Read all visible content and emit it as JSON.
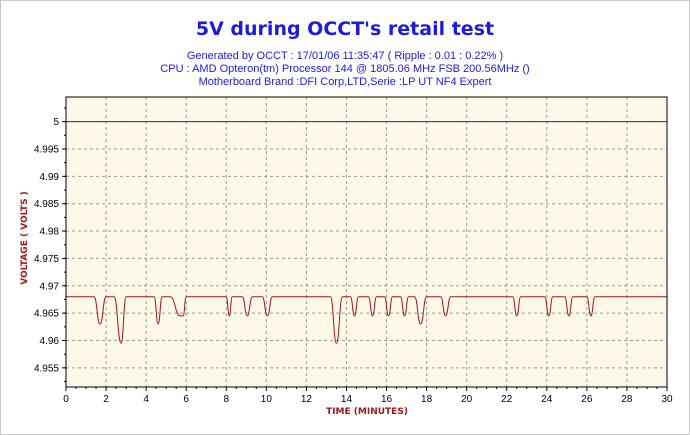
{
  "chart_data": {
    "type": "line",
    "title": "5V during OCCT's retail test",
    "subtitle_lines": [
      "Generated by OCCT : 17/01/06 11:35:47 ( Ripple : 0.01 : 0.22% )",
      "CPU : AMD Opteron(tm) Processor 144    @ 1805.06 MHz FSB 200.56MHz ()",
      "Motherboard Brand :DFI Corp,LTD,Serie :LP UT NF4 Expert"
    ],
    "xlabel": "TIME (MINUTES)",
    "ylabel": "VOLTAGE ( VOLTS )",
    "xlim": [
      0,
      30
    ],
    "ylim": [
      4.9515,
      5.0045
    ],
    "x_ticks": [
      0,
      2,
      4,
      6,
      8,
      10,
      12,
      14,
      16,
      18,
      20,
      22,
      24,
      26,
      28,
      30
    ],
    "y_ticks": [
      "4.955",
      "4.96",
      "4.965",
      "4.97",
      "4.975",
      "4.98",
      "4.985",
      "4.99",
      "4.995",
      "5"
    ],
    "grid": true,
    "colors": {
      "plot_bg": "#fdf8e8",
      "grid": "#9a9a9a",
      "ref_line": "#2020d0",
      "series": "#a01818",
      "title": "#1c1ce0",
      "axis_title": "#a01818"
    },
    "series": [
      {
        "line": "reference",
        "x": [
          0,
          30
        ],
        "y": [
          5.0,
          5.0
        ]
      },
      {
        "line": "measured",
        "baseline": 4.968,
        "x": [
          0,
          1.4,
          1.7,
          2.0,
          2.2,
          2.4,
          2.75,
          3.0,
          3.2,
          4.4,
          4.6,
          4.8,
          5.0,
          5.2,
          5.7,
          5.85,
          6.0,
          8.0,
          8.15,
          8.3,
          8.8,
          9.05,
          9.3,
          9.8,
          10.05,
          10.3,
          13.2,
          13.5,
          13.8,
          14.2,
          14.4,
          14.6,
          15.1,
          15.3,
          15.5,
          15.9,
          16.1,
          16.3,
          16.7,
          16.9,
          17.1,
          17.4,
          17.7,
          18.0,
          18.7,
          18.95,
          19.2,
          22.3,
          22.5,
          22.7,
          23.9,
          24.1,
          24.3,
          24.9,
          25.1,
          25.3,
          26.0,
          26.2,
          26.4,
          30
        ],
        "y": [
          4.968,
          4.968,
          4.963,
          4.968,
          4.968,
          4.968,
          4.9595,
          4.968,
          4.968,
          4.968,
          4.963,
          4.968,
          4.968,
          4.968,
          4.9645,
          4.9645,
          4.968,
          4.968,
          4.9645,
          4.968,
          4.968,
          4.9645,
          4.968,
          4.968,
          4.9645,
          4.968,
          4.968,
          4.9595,
          4.968,
          4.968,
          4.9645,
          4.968,
          4.968,
          4.9645,
          4.968,
          4.968,
          4.9645,
          4.968,
          4.968,
          4.9645,
          4.968,
          4.968,
          4.963,
          4.968,
          4.968,
          4.9645,
          4.968,
          4.968,
          4.9645,
          4.968,
          4.968,
          4.9645,
          4.968,
          4.968,
          4.9645,
          4.968,
          4.968,
          4.9645,
          4.968,
          4.968
        ]
      }
    ]
  }
}
